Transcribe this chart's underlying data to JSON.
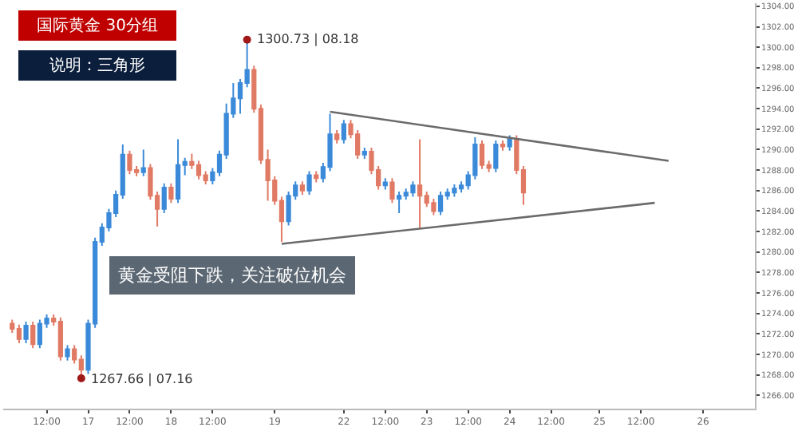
{
  "chart_data": {
    "type": "candlestick",
    "title": "国际黄金 30分组",
    "subtitle": "说明：三角形",
    "categories": [
      null,
      null,
      null,
      null,
      null,
      "12:00",
      null,
      null,
      null,
      null,
      null,
      "17",
      null,
      null,
      null,
      null,
      null,
      "12:00",
      null,
      null,
      null,
      null,
      null,
      "18",
      null,
      null,
      null,
      null,
      null,
      "12:00",
      null,
      null,
      null,
      null,
      null,
      null,
      null,
      null,
      "19",
      null,
      null,
      null,
      null,
      null,
      null,
      null,
      null,
      null,
      "22",
      null,
      null,
      null,
      null,
      null,
      "12:00",
      null,
      null,
      null,
      null,
      null,
      "23",
      null,
      null,
      null,
      null,
      null,
      "12:00",
      null,
      null,
      null,
      null,
      null,
      "24",
      null,
      null,
      null,
      null,
      null,
      "12:00",
      null,
      null,
      null,
      null,
      null,
      null,
      "25",
      null,
      null,
      null,
      null,
      null,
      "12:00",
      null,
      null,
      null,
      null,
      null,
      null,
      null,
      null,
      "26",
      null,
      null,
      null,
      null,
      null,
      null,
      null
    ],
    "ohlc": [
      [
        1273,
        1273.4,
        1272.1,
        1272.5
      ],
      [
        1272.5,
        1272.9,
        1271.1,
        1271.5
      ],
      [
        1271.5,
        1273.2,
        1271.1,
        1272.8
      ],
      [
        1272.8,
        1273.2,
        1270.6,
        1271
      ],
      [
        1271,
        1273.4,
        1270.6,
        1273
      ],
      [
        1273,
        1273.9,
        1272.6,
        1273.5
      ],
      [
        1273.5,
        1273.9,
        1272.8,
        1273.2
      ],
      [
        1273.2,
        1273.6,
        1269.4,
        1269.8
      ],
      [
        1269.8,
        1270.9,
        1269.4,
        1270.5
      ],
      [
        1270.5,
        1270.9,
        1269.1,
        1269.5
      ],
      [
        1269.5,
        1269.9,
        1267.66,
        1268.5
      ],
      [
        1268.5,
        1273.4,
        1268.1,
        1273
      ],
      [
        1273,
        1281.4,
        1272.6,
        1281
      ],
      [
        1281,
        1282.8,
        1280.6,
        1282.4
      ],
      [
        1282.4,
        1284.2,
        1282,
        1283.8
      ],
      [
        1283.8,
        1286,
        1283.4,
        1285.6
      ],
      [
        1285.6,
        1290.5,
        1285.2,
        1289.5
      ],
      [
        1289.5,
        1289.9,
        1287.6,
        1288
      ],
      [
        1288,
        1288.4,
        1287.4,
        1287.8
      ],
      [
        1287.8,
        1290,
        1287.4,
        1288.2
      ],
      [
        1288.2,
        1288.6,
        1285.1,
        1285.5
      ],
      [
        1285.5,
        1285.9,
        1282.5,
        1284.2
      ],
      [
        1284.2,
        1286.7,
        1283.8,
        1286.3
      ],
      [
        1286.3,
        1286.7,
        1284.8,
        1285.2
      ],
      [
        1285.2,
        1291,
        1284.8,
        1288.5
      ],
      [
        1288.5,
        1289.2,
        1287.5,
        1288.8
      ],
      [
        1288.8,
        1289.6,
        1288.1,
        1288.5
      ],
      [
        1288.5,
        1288.9,
        1287.1,
        1287.5
      ],
      [
        1287.5,
        1287.9,
        1286.6,
        1287
      ],
      [
        1287,
        1288.2,
        1286.6,
        1287.8
      ],
      [
        1287.8,
        1289.9,
        1287.4,
        1289.5
      ],
      [
        1289.5,
        1294.5,
        1289.1,
        1293.5
      ],
      [
        1293.5,
        1296.5,
        1293.1,
        1295
      ],
      [
        1295,
        1296.9,
        1293.5,
        1296.5
      ],
      [
        1296.5,
        1300.73,
        1296.1,
        1297.8
      ],
      [
        1297.8,
        1298.2,
        1293.6,
        1294
      ],
      [
        1294,
        1294.4,
        1288.6,
        1289
      ],
      [
        1289,
        1290,
        1285,
        1287
      ],
      [
        1287,
        1287.4,
        1284.6,
        1285
      ],
      [
        1285,
        1285.4,
        1281,
        1283
      ],
      [
        1283,
        1285.9,
        1282.6,
        1285.5
      ],
      [
        1285.5,
        1286.9,
        1285.1,
        1286.5
      ],
      [
        1286.5,
        1286.9,
        1285.6,
        1286
      ],
      [
        1286,
        1287.9,
        1285.6,
        1287.5
      ],
      [
        1287.5,
        1287.9,
        1286.8,
        1287.2
      ],
      [
        1287.2,
        1288.7,
        1286.8,
        1288.3
      ],
      [
        1288.3,
        1293.5,
        1287.9,
        1291.5
      ],
      [
        1291.5,
        1291.9,
        1290.6,
        1291
      ],
      [
        1291,
        1292.9,
        1290.6,
        1292.5
      ],
      [
        1292.5,
        1292.9,
        1291.1,
        1291.5
      ],
      [
        1291.5,
        1291.9,
        1289.1,
        1289.5
      ],
      [
        1289.5,
        1290.2,
        1289.1,
        1289.8
      ],
      [
        1289.8,
        1290.2,
        1287.6,
        1288
      ],
      [
        1288,
        1288.4,
        1286.1,
        1286.5
      ],
      [
        1286.5,
        1287.2,
        1286.1,
        1286.8
      ],
      [
        1286.8,
        1287.2,
        1284.8,
        1285.2
      ],
      [
        1285.2,
        1285.9,
        1283.8,
        1285.5
      ],
      [
        1285.5,
        1286.2,
        1285.1,
        1285.8
      ],
      [
        1285.8,
        1286.9,
        1285.4,
        1286.5
      ],
      [
        1286.5,
        1291,
        1282.3,
        1285.5
      ],
      [
        1285.5,
        1285.9,
        1284.4,
        1284.8
      ],
      [
        1284.8,
        1285.2,
        1283.6,
        1284
      ],
      [
        1284,
        1285.9,
        1283.6,
        1285.5
      ],
      [
        1285.5,
        1286.2,
        1285.1,
        1285.8
      ],
      [
        1285.8,
        1286.6,
        1285.4,
        1286.2
      ],
      [
        1286.2,
        1286.9,
        1285.8,
        1286.5
      ],
      [
        1286.5,
        1287.9,
        1286.1,
        1287.5
      ],
      [
        1287.5,
        1291.2,
        1287.1,
        1290.5
      ],
      [
        1290.5,
        1290.9,
        1288.1,
        1288.5
      ],
      [
        1288.5,
        1288.9,
        1287.8,
        1288.2
      ],
      [
        1288.2,
        1290.9,
        1287.8,
        1290.5
      ],
      [
        1290.5,
        1290.9,
        1289.9,
        1290.3
      ],
      [
        1290.3,
        1291.4,
        1289.9,
        1291
      ],
      [
        1291,
        1291.4,
        1287.6,
        1288
      ],
      [
        1288,
        1288.4,
        1284.6,
        1285.8
      ],
      null,
      null,
      null,
      null,
      null,
      null,
      null,
      null,
      null,
      null,
      null,
      null,
      null,
      null,
      null,
      null,
      null,
      null,
      null,
      null,
      null,
      null,
      null,
      null,
      null,
      null,
      null,
      null,
      null,
      null,
      null,
      null,
      null
    ],
    "colors": [
      "#e07a65",
      "#e07a65",
      "#3b8ad9",
      "#e07a65",
      "#3b8ad9",
      "#3b8ad9",
      "#e07a65",
      "#e07a65",
      "#3b8ad9",
      "#e07a65",
      "#e07a65",
      "#3b8ad9",
      "#3b8ad9",
      "#3b8ad9",
      "#3b8ad9",
      "#3b8ad9",
      "#3b8ad9",
      "#e07a65",
      "#e07a65",
      "#3b8ad9",
      "#e07a65",
      "#e07a65",
      "#3b8ad9",
      "#e07a65",
      "#3b8ad9",
      "#3b8ad9",
      "#e07a65",
      "#e07a65",
      "#e07a65",
      "#3b8ad9",
      "#3b8ad9",
      "#3b8ad9",
      "#3b8ad9",
      "#3b8ad9",
      "#3b8ad9",
      "#e07a65",
      "#e07a65",
      "#e07a65",
      "#e07a65",
      "#e07a65",
      "#3b8ad9",
      "#3b8ad9",
      "#e07a65",
      "#3b8ad9",
      "#e07a65",
      "#3b8ad9",
      "#3b8ad9",
      "#e07a65",
      "#3b8ad9",
      "#e07a65",
      "#e07a65",
      "#3b8ad9",
      "#e07a65",
      "#e07a65",
      "#3b8ad9",
      "#e07a65",
      "#3b8ad9",
      "#3b8ad9",
      "#3b8ad9",
      "#e07a65",
      "#e07a65",
      "#e07a65",
      "#3b8ad9",
      "#3b8ad9",
      "#3b8ad9",
      "#3b8ad9",
      "#3b8ad9",
      "#3b8ad9",
      "#e07a65",
      "#e07a65",
      "#3b8ad9",
      "#e07a65",
      "#3b8ad9",
      "#e07a65",
      "#e07a65",
      null,
      null,
      null,
      null,
      null,
      null,
      null,
      null,
      null,
      null,
      null,
      null,
      null,
      null,
      null,
      null,
      null,
      null,
      null,
      null,
      null,
      null,
      null,
      null,
      null,
      null,
      null,
      null,
      null,
      null,
      null,
      null,
      null
    ],
    "series": [
      {
        "type": "line",
        "color": "#6b6b6b",
        "values": [
          null,
          null,
          null,
          null,
          null,
          null,
          null,
          null,
          null,
          null,
          null,
          null,
          null,
          null,
          null,
          null,
          null,
          null,
          null,
          null,
          null,
          null,
          null,
          null,
          null,
          null,
          null,
          null,
          null,
          null,
          null,
          null,
          null,
          null,
          null,
          null,
          null,
          null,
          null,
          null,
          null,
          null,
          null,
          null,
          null,
          null,
          1293.7,
          null,
          null,
          null,
          null,
          null,
          null,
          null,
          null,
          null,
          null,
          null,
          null,
          null,
          null,
          null,
          null,
          null,
          null,
          null,
          null,
          null,
          null,
          null,
          null,
          null,
          null,
          null,
          null,
          null,
          null,
          null,
          null,
          null,
          null,
          null,
          null,
          null,
          null,
          null,
          null,
          null,
          null,
          null,
          null,
          null,
          null,
          null,
          null,
          1288.9,
          null,
          null,
          null,
          null,
          null,
          null,
          null,
          null,
          null,
          null,
          null,
          null
        ]
      },
      {
        "type": "line",
        "color": "#6b6b6b",
        "values": [
          null,
          null,
          null,
          null,
          null,
          null,
          null,
          null,
          null,
          null,
          null,
          null,
          null,
          null,
          null,
          null,
          null,
          null,
          null,
          null,
          null,
          null,
          null,
          null,
          null,
          null,
          null,
          null,
          null,
          null,
          null,
          null,
          null,
          null,
          null,
          null,
          null,
          null,
          null,
          1280.8,
          null,
          null,
          null,
          null,
          null,
          null,
          null,
          null,
          null,
          null,
          null,
          null,
          null,
          null,
          null,
          null,
          null,
          null,
          null,
          null,
          null,
          null,
          null,
          null,
          null,
          null,
          null,
          null,
          null,
          null,
          null,
          null,
          null,
          null,
          null,
          null,
          null,
          null,
          null,
          null,
          null,
          null,
          null,
          null,
          null,
          null,
          null,
          null,
          null,
          null,
          null,
          null,
          null,
          1284.8,
          null,
          null,
          null,
          null,
          null,
          null,
          null,
          null,
          null,
          null,
          null,
          null,
          null,
          null
        ]
      },
      {
        "type": "scatter",
        "color": "#a01818",
        "marker": "circle",
        "values": [
          null,
          null,
          null,
          null,
          null,
          null,
          null,
          null,
          null,
          null,
          1267.66,
          null,
          null,
          null,
          null,
          null,
          null,
          null,
          null,
          null,
          null,
          null,
          null,
          null,
          null,
          null,
          null,
          null,
          null,
          null,
          null,
          null,
          null,
          null,
          1300.73,
          null,
          null,
          null,
          null,
          null,
          null,
          null,
          null,
          null,
          null,
          null,
          null,
          null,
          null,
          null,
          null,
          null,
          null,
          null,
          null,
          null,
          null,
          null,
          null,
          null,
          null,
          null,
          null,
          null,
          null,
          null,
          null,
          null,
          null,
          null,
          null,
          null,
          null,
          null,
          null,
          null,
          null,
          null,
          null,
          null,
          null,
          null,
          null,
          null,
          null,
          null,
          null,
          null,
          null,
          null,
          null,
          null,
          null,
          null,
          null,
          null,
          null,
          null,
          null,
          null,
          null,
          null,
          null,
          null,
          null,
          null,
          null,
          null
        ],
        "value_labels": [
          null,
          null,
          null,
          null,
          null,
          null,
          null,
          null,
          null,
          null,
          "1267.66 | 07.16",
          null,
          null,
          null,
          null,
          null,
          null,
          null,
          null,
          null,
          null,
          null,
          null,
          null,
          null,
          null,
          null,
          null,
          null,
          null,
          null,
          null,
          null,
          null,
          "1300.73 | 08.18",
          null,
          null,
          null,
          null,
          null,
          null,
          null,
          null,
          null,
          null,
          null,
          null,
          null,
          null,
          null,
          null,
          null,
          null,
          null,
          null,
          null,
          null,
          null,
          null,
          null,
          null,
          null,
          null,
          null,
          null,
          null,
          null,
          null,
          null,
          null,
          null,
          null,
          null,
          null,
          null,
          null,
          null,
          null,
          null,
          null,
          null,
          null,
          null,
          null,
          null,
          null,
          null,
          null,
          null,
          null,
          null,
          null,
          null,
          null,
          null,
          null,
          null,
          null,
          null,
          null,
          null,
          null,
          null,
          null,
          null,
          null,
          null,
          null
        ]
      }
    ],
    "annotations": [
      "黄金受阻下跌，关注破位机会"
    ],
    "ylim": [
      1264.7,
      1304.3
    ],
    "yticks": [
      {
        "value": 1266,
        "label": "1266.00"
      },
      {
        "value": 1268,
        "label": "1268.00"
      },
      {
        "value": 1270,
        "label": "1270.00"
      },
      {
        "value": 1272,
        "label": "1272.00"
      },
      {
        "value": 1274,
        "label": "1274.00"
      },
      {
        "value": 1276,
        "label": "1276.00"
      },
      {
        "value": 1278,
        "label": "1278.00"
      },
      {
        "value": 1280,
        "label": "1280.00"
      },
      {
        "value": 1282,
        "label": "1282.00"
      },
      {
        "value": 1284,
        "label": "1284.00"
      },
      {
        "value": 1286,
        "label": "1286.00"
      },
      {
        "value": 1288,
        "label": "1288.00"
      },
      {
        "value": 1290,
        "label": "1290.00"
      },
      {
        "value": 1292,
        "label": "1292.00"
      },
      {
        "value": 1294,
        "label": "1294.00"
      },
      {
        "value": 1296,
        "label": "1296.00"
      },
      {
        "value": 1298,
        "label": "1298.00"
      },
      {
        "value": 1300,
        "label": "1300.00"
      },
      {
        "value": 1302,
        "label": "1302.00"
      },
      {
        "value": 1304,
        "label": "1304.00"
      }
    ]
  }
}
